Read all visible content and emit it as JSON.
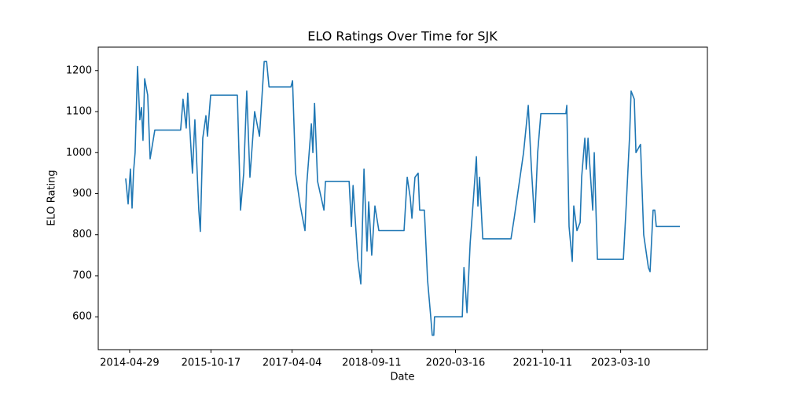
{
  "chart_data": {
    "type": "line",
    "title": "ELO Ratings Over Time for SJK",
    "x_label": "Date",
    "y_label": "ELO Rating",
    "color": "#1f77b4",
    "x": [
      "2014-04-03",
      "2014-04-19",
      "2014-05-04",
      "2014-05-15",
      "2014-05-25",
      "2014-06-04",
      "2014-06-20",
      "2014-07-05",
      "2014-07-16",
      "2014-07-26",
      "2014-08-06",
      "2014-08-26",
      "2014-09-11",
      "2014-10-12",
      "2015-03-31",
      "2015-04-16",
      "2015-05-07",
      "2015-05-17",
      "2015-06-17",
      "2015-07-03",
      "2015-07-29",
      "2015-08-08",
      "2015-08-24",
      "2015-09-14",
      "2015-09-24",
      "2015-10-15",
      "2016-04-08",
      "2016-04-24",
      "2016-04-29",
      "2016-05-20",
      "2016-06-09",
      "2016-06-30",
      "2016-07-31",
      "2016-09-01",
      "2016-10-02",
      "2016-10-18",
      "2016-11-03",
      "2017-03-27",
      "2017-04-07",
      "2017-04-27",
      "2017-05-28",
      "2017-06-28",
      "2017-07-09",
      "2017-08-09",
      "2017-08-19",
      "2017-08-30",
      "2017-09-19",
      "2017-10-31",
      "2017-11-10",
      "2018-04-15",
      "2018-04-30",
      "2018-05-11",
      "2018-06-11",
      "2018-07-01",
      "2018-07-22",
      "2018-08-11",
      "2018-08-22",
      "2018-09-11",
      "2018-10-02",
      "2018-10-28",
      "2019-04-12",
      "2019-05-03",
      "2019-05-23",
      "2019-06-03",
      "2019-06-23",
      "2019-07-14",
      "2019-07-24",
      "2019-08-24",
      "2019-09-14",
      "2019-10-05",
      "2019-10-15",
      "2019-10-25",
      "2019-10-30",
      "2020-04-30",
      "2020-05-11",
      "2020-05-31",
      "2020-06-21",
      "2020-07-11",
      "2020-08-01",
      "2020-08-11",
      "2020-08-22",
      "2020-09-12",
      "2021-03-17",
      "2021-04-07",
      "2021-05-08",
      "2021-06-08",
      "2021-07-09",
      "2021-07-30",
      "2021-08-20",
      "2021-09-09",
      "2021-09-30",
      "2022-03-14",
      "2022-03-20",
      "2022-04-04",
      "2022-04-25",
      "2022-05-05",
      "2022-05-26",
      "2022-06-16",
      "2022-06-26",
      "2022-07-17",
      "2022-07-27",
      "2022-08-07",
      "2022-09-07",
      "2022-09-17",
      "2022-10-08",
      "2023-03-28",
      "2023-04-17",
      "2023-05-08",
      "2023-05-18",
      "2023-06-08",
      "2023-06-19",
      "2023-07-19",
      "2023-08-09",
      "2023-09-09",
      "2023-09-20",
      "2023-10-10",
      "2023-10-21",
      "2023-10-31",
      "2024-04-04"
    ],
    "values": [
      937,
      875,
      960,
      865,
      955,
      1000,
      1210,
      1080,
      1110,
      1030,
      1180,
      1140,
      985,
      1055,
      1055,
      1130,
      1060,
      1145,
      950,
      1080,
      860,
      808,
      1035,
      1090,
      1040,
      1140,
      1140,
      930,
      860,
      950,
      1150,
      940,
      1100,
      1040,
      1222,
      1222,
      1160,
      1160,
      1175,
      950,
      870,
      810,
      920,
      1070,
      1000,
      1120,
      930,
      860,
      930,
      930,
      820,
      920,
      740,
      680,
      960,
      760,
      880,
      750,
      870,
      810,
      810,
      940,
      890,
      840,
      940,
      950,
      860,
      860,
      690,
      600,
      555,
      555,
      600,
      600,
      720,
      610,
      780,
      880,
      990,
      870,
      940,
      790,
      790,
      840,
      920,
      1000,
      1115,
      960,
      830,
      1000,
      1095,
      1095,
      1115,
      820,
      735,
      870,
      810,
      830,
      940,
      1035,
      960,
      1035,
      860,
      1000,
      740,
      740,
      880,
      1040,
      1150,
      1130,
      1000,
      1020,
      800,
      720,
      710,
      860,
      860,
      820,
      820
    ],
    "xlim": [
      "2013-10-04",
      "2024-10-02"
    ],
    "xticks": [
      "2014-04-29",
      "2015-10-17",
      "2017-04-04",
      "2018-09-11",
      "2020-03-16",
      "2021-10-11",
      "2023-03-10"
    ],
    "ylim": [
      520,
      1257
    ],
    "yticks": [
      600,
      700,
      800,
      900,
      1000,
      1100,
      1200
    ]
  }
}
